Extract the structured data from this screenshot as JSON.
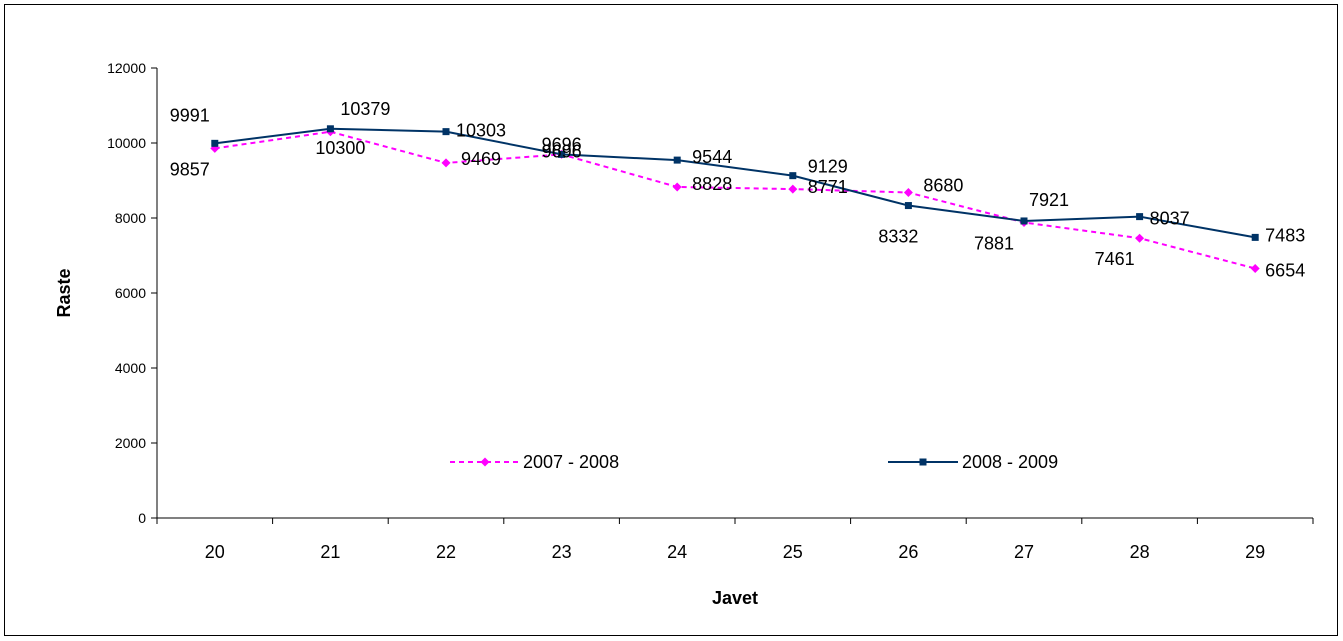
{
  "chart_data": {
    "type": "line",
    "title": "",
    "xlabel": "Javet",
    "ylabel": "Raste",
    "categories": [
      "20",
      "21",
      "22",
      "23",
      "24",
      "25",
      "26",
      "27",
      "28",
      "29"
    ],
    "ylim": [
      0,
      12000
    ],
    "yticks": [
      "0",
      "2000",
      "4000",
      "6000",
      "8000",
      "10000",
      "12000"
    ],
    "grid": false,
    "legend_position": "inside-bottom",
    "series": [
      {
        "name": "2007 - 2008",
        "values": [
          9857,
          10300,
          9469,
          9696,
          8828,
          8771,
          8680,
          7881,
          7461,
          6654
        ],
        "color": "#ff00ff",
        "line_style": "dashed",
        "marker": "diamond"
      },
      {
        "name": "2008 - 2009",
        "values": [
          9991,
          10379,
          10303,
          9696,
          9544,
          9129,
          8332,
          7921,
          8037,
          7483
        ],
        "color": "#003366",
        "line_style": "solid",
        "marker": "square"
      }
    ]
  }
}
